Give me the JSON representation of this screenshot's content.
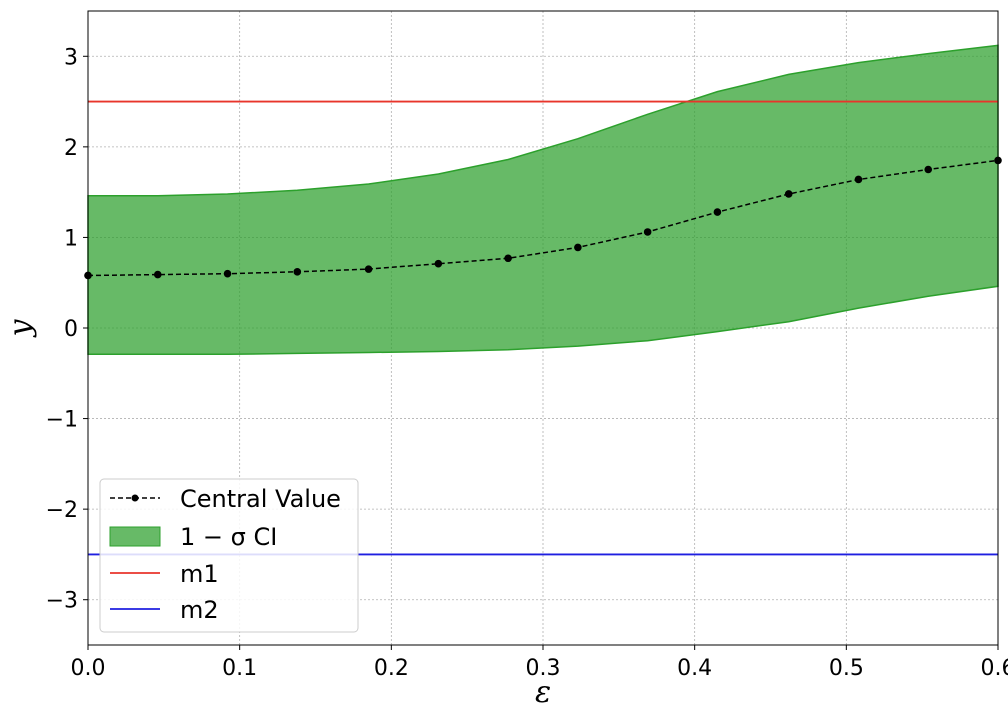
{
  "chart_data": {
    "type": "line",
    "xlabel": "ε",
    "ylabel": "y",
    "xlim": [
      0,
      0.6
    ],
    "ylim": [
      -3.5,
      3.5
    ],
    "grid": true,
    "legend_position": "lower-left",
    "xticks": [
      "0.0",
      "0.1",
      "0.2",
      "0.3",
      "0.4",
      "0.5",
      "0.6"
    ],
    "yticks": [
      "3",
      "2",
      "1",
      "0",
      "−1",
      "−2",
      "−3"
    ],
    "x": [
      0.0,
      0.046,
      0.092,
      0.138,
      0.185,
      0.231,
      0.277,
      0.323,
      0.369,
      0.415,
      0.462,
      0.508,
      0.554,
      0.6
    ],
    "series": [
      {
        "name": "Central Value",
        "style": "dashed-marker",
        "color": "#000000",
        "values": [
          0.58,
          0.59,
          0.6,
          0.62,
          0.65,
          0.71,
          0.77,
          0.89,
          1.06,
          1.28,
          1.48,
          1.64,
          1.75,
          1.85
        ]
      },
      {
        "name": "1 − σ CI",
        "style": "band",
        "color": "#2ca02c",
        "lower": [
          -0.29,
          -0.29,
          -0.29,
          -0.28,
          -0.27,
          -0.26,
          -0.24,
          -0.2,
          -0.14,
          -0.04,
          0.07,
          0.22,
          0.35,
          0.46
        ],
        "upper": [
          1.46,
          1.46,
          1.48,
          1.52,
          1.59,
          1.7,
          1.86,
          2.09,
          2.36,
          2.61,
          2.8,
          2.93,
          3.03,
          3.12
        ]
      },
      {
        "name": "m1",
        "style": "hline",
        "color": "#e8352b",
        "value": 2.5
      },
      {
        "name": "m2",
        "style": "hline",
        "color": "#1f1fe0",
        "value": -2.5
      }
    ]
  }
}
